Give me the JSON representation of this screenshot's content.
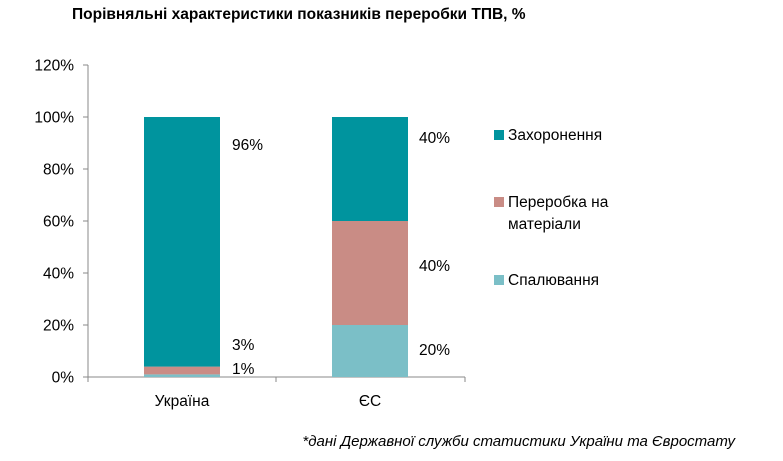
{
  "chart_data": {
    "type": "bar",
    "stacked": true,
    "title": "Порівняльні характеристики показників переробки ТПВ, %",
    "categories": [
      "Україна",
      "ЄС"
    ],
    "series": [
      {
        "name": "Спалювання",
        "values": [
          1,
          20
        ],
        "labels": [
          "1%",
          "20%"
        ],
        "color": "#7bbfc7"
      },
      {
        "name": "Переробка на матеріали",
        "values": [
          3,
          40
        ],
        "labels": [
          "3%",
          "40%"
        ],
        "color": "#c98c85"
      },
      {
        "name": "Захоронення",
        "values": [
          96,
          40
        ],
        "labels": [
          "96%",
          "40%"
        ],
        "color": "#00949e"
      }
    ],
    "ylim": [
      0,
      120
    ],
    "yticks": [
      "0%",
      "20%",
      "40%",
      "60%",
      "80%",
      "100%",
      "120%"
    ],
    "grid": false,
    "legend": {
      "placement": "right",
      "entries": [
        {
          "series": "Захоронення",
          "lines": [
            "Захоронення"
          ]
        },
        {
          "series": "Переробка на матеріали",
          "lines": [
            "Переробка на",
            "матеріали"
          ]
        },
        {
          "series": "Спалювання",
          "lines": [
            "Спалювання"
          ]
        }
      ]
    }
  },
  "footnote": "*дані Державної служби статистики України та Євростату"
}
